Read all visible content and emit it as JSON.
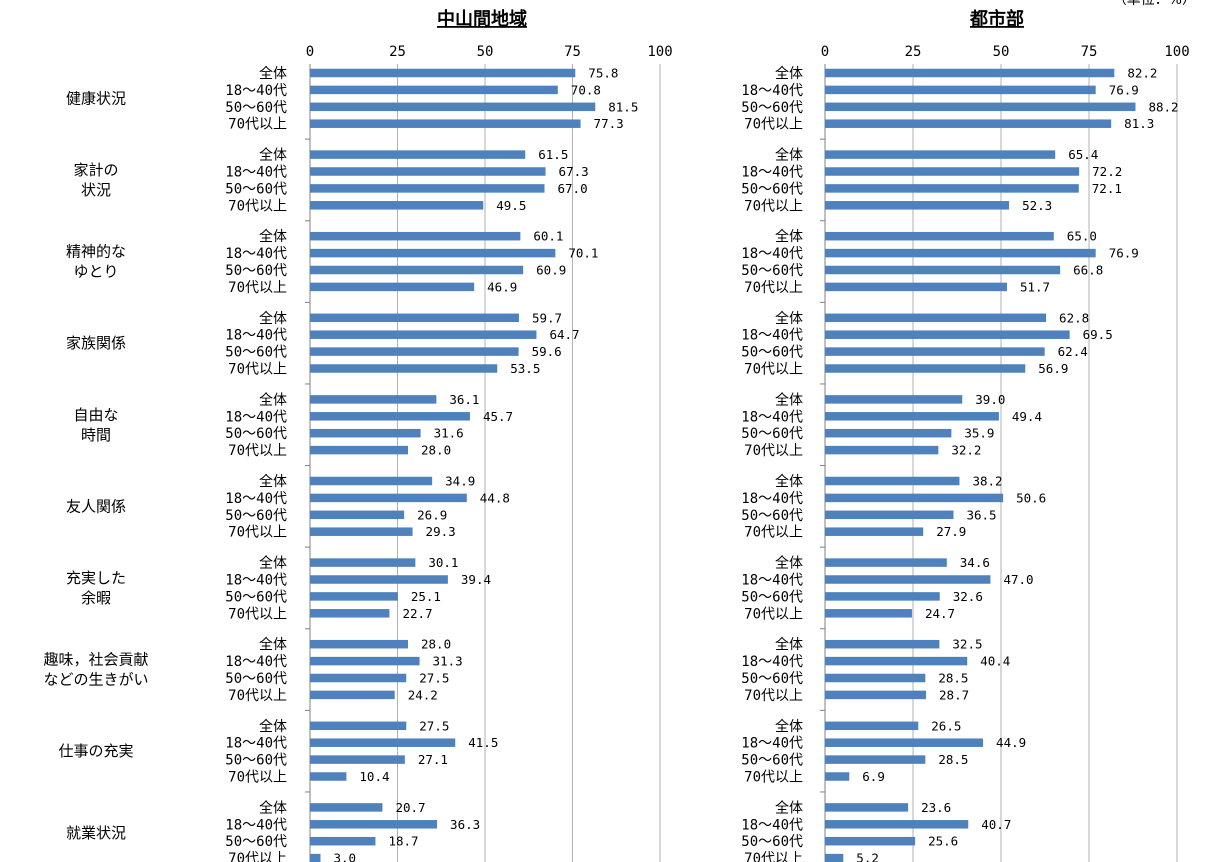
{
  "unit_label": "（単位：%）",
  "colors": {
    "bar": "#4f81bd",
    "grid": "#b0b0b0",
    "axis": "#808080"
  },
  "chart_data": [
    {
      "type": "bar",
      "orientation": "horizontal",
      "title": "中山間地域",
      "xlim": [
        0,
        100
      ],
      "x_ticks": [
        "0",
        "25",
        "50",
        "75",
        "100"
      ],
      "grid": true,
      "series": [
        "全体",
        "18〜40代",
        "50〜60代",
        "70代以上"
      ],
      "categories": [
        {
          "label": [
            "健康状況"
          ],
          "values": [
            75.8,
            70.8,
            81.5,
            77.3
          ]
        },
        {
          "label": [
            "家計の",
            "状況"
          ],
          "values": [
            61.5,
            67.3,
            67.0,
            49.5
          ]
        },
        {
          "label": [
            "精神的な",
            "ゆとり"
          ],
          "values": [
            60.1,
            70.1,
            60.9,
            46.9
          ]
        },
        {
          "label": [
            "家族関係"
          ],
          "values": [
            59.7,
            64.7,
            59.6,
            53.5
          ]
        },
        {
          "label": [
            "自由な",
            "時間"
          ],
          "values": [
            36.1,
            45.7,
            31.6,
            28.0
          ]
        },
        {
          "label": [
            "友人関係"
          ],
          "values": [
            34.9,
            44.8,
            26.9,
            29.3
          ]
        },
        {
          "label": [
            "充実した",
            "余暇"
          ],
          "values": [
            30.1,
            39.4,
            25.1,
            22.7
          ]
        },
        {
          "label": [
            "趣味，社会貢献",
            "などの生きがい"
          ],
          "values": [
            28.0,
            31.3,
            27.5,
            24.2
          ]
        },
        {
          "label": [
            "仕事の充実"
          ],
          "values": [
            27.5,
            41.5,
            27.1,
            10.4
          ]
        },
        {
          "label": [
            "就業状況"
          ],
          "values": [
            20.7,
            36.3,
            18.7,
            3.0
          ]
        }
      ]
    },
    {
      "type": "bar",
      "orientation": "horizontal",
      "title": "都市部",
      "xlim": [
        0,
        100
      ],
      "x_ticks": [
        "0",
        "25",
        "50",
        "75",
        "100"
      ],
      "grid": true,
      "series": [
        "全体",
        "18〜40代",
        "50〜60代",
        "70代以上"
      ],
      "categories": [
        {
          "label": [
            "健康状況"
          ],
          "values": [
            82.2,
            76.9,
            88.2,
            81.3
          ]
        },
        {
          "label": [
            "家計の",
            "状況"
          ],
          "values": [
            65.4,
            72.2,
            72.1,
            52.3
          ]
        },
        {
          "label": [
            "精神的な",
            "ゆとり"
          ],
          "values": [
            65.0,
            76.9,
            66.8,
            51.7
          ]
        },
        {
          "label": [
            "家族関係"
          ],
          "values": [
            62.8,
            69.5,
            62.4,
            56.9
          ]
        },
        {
          "label": [
            "自由な",
            "時間"
          ],
          "values": [
            39.0,
            49.4,
            35.9,
            32.2
          ]
        },
        {
          "label": [
            "友人関係"
          ],
          "values": [
            38.2,
            50.6,
            36.5,
            27.9
          ]
        },
        {
          "label": [
            "充実した",
            "余暇"
          ],
          "values": [
            34.6,
            47.0,
            32.6,
            24.7
          ]
        },
        {
          "label": [
            "趣味，社会貢献",
            "などの生きがい"
          ],
          "values": [
            32.5,
            40.4,
            28.5,
            28.7
          ]
        },
        {
          "label": [
            "仕事の充実"
          ],
          "values": [
            26.5,
            44.9,
            28.5,
            6.9
          ]
        },
        {
          "label": [
            "就業状況"
          ],
          "values": [
            23.6,
            40.7,
            25.6,
            5.2
          ]
        }
      ]
    }
  ]
}
